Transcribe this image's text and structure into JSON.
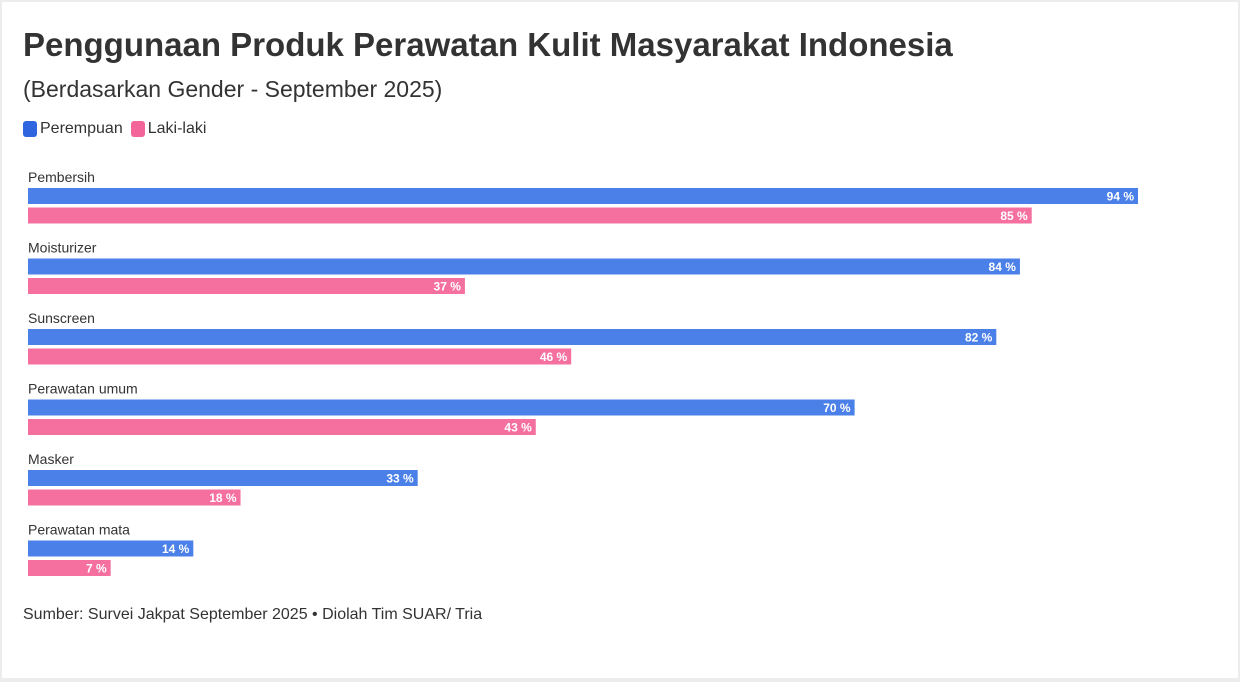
{
  "title": "Penggunaan Produk Perawatan Kulit Masyarakat Indonesia",
  "subtitle": "(Berdasarkan Gender - September 2025)",
  "source": "Sumber: Survei Jakpat September 2025 • Diolah Tim SUAR/ Tria",
  "legend": [
    {
      "name": "Perempuan",
      "color": "#2f66e0"
    },
    {
      "name": "Laki-laki",
      "color": "#f2649a"
    }
  ],
  "chart_data": {
    "type": "bar",
    "orientation": "horizontal",
    "categories": [
      "Pembersih",
      "Moisturizer",
      "Sunscreen",
      "Perawatan umum",
      "Masker",
      "Perawatan mata"
    ],
    "series": [
      {
        "name": "Perempuan",
        "color": "#4a80e8",
        "values": [
          94,
          84,
          82,
          70,
          33,
          14
        ],
        "labels": [
          "94 %",
          "84 %",
          "82 %",
          "70 %",
          "33 %",
          "14 %"
        ]
      },
      {
        "name": "Laki-laki",
        "color": "#f5709f",
        "values": [
          85,
          37,
          46,
          43,
          18,
          7
        ],
        "labels": [
          "85 %",
          "37 %",
          "46 %",
          "43 %",
          "18 %",
          "7 %"
        ]
      }
    ],
    "xlim": [
      0,
      100
    ],
    "unit": "%",
    "grid": false,
    "legend_position": "top-left"
  }
}
